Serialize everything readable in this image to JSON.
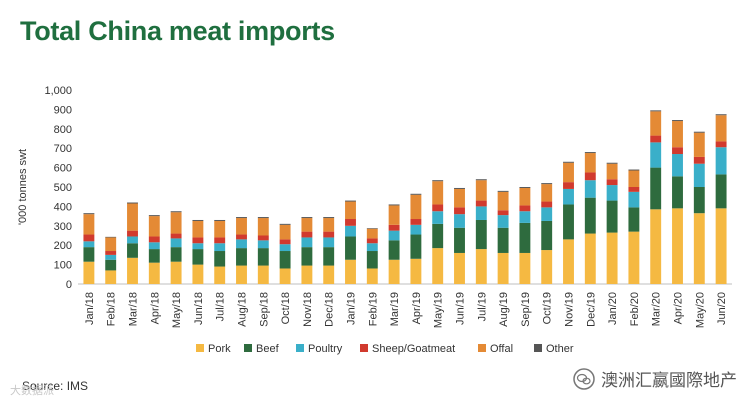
{
  "title": "Total China meat imports",
  "source": "Source: IMS",
  "watermark_left": "大数据派",
  "watermark_right": "澳洲汇嬴國際地产",
  "chart_data": {
    "type": "bar",
    "stacked": true,
    "title": "Total China meat imports",
    "xlabel": "",
    "ylabel": "'000 tonnes swt",
    "ylim": [
      0,
      1000
    ],
    "yticks": [
      0,
      100,
      200,
      300,
      400,
      500,
      600,
      700,
      800,
      900,
      1000
    ],
    "ytick_labels": [
      "0",
      "100",
      "200",
      "300",
      "400",
      "500",
      "600",
      "700",
      "800",
      "900",
      "1,000"
    ],
    "grid": false,
    "legend_position": "bottom",
    "categories": [
      "Jan/18",
      "Feb/18",
      "Mar/18",
      "Apr/18",
      "May/18",
      "Jun/18",
      "Jul/18",
      "Aug/18",
      "Sep/18",
      "Oct/18",
      "Nov/18",
      "Dec/18",
      "Jan/19",
      "Feb/19",
      "Mar/19",
      "Apr/19",
      "May/19",
      "Jun/19",
      "Jul/19",
      "Aug/19",
      "Sep/19",
      "Oct/19",
      "Nov/19",
      "Dec/19",
      "Jan/20",
      "Feb/20",
      "Mar/20",
      "Apr/20",
      "May/20",
      "Jun/20"
    ],
    "xtick_labels": [
      "Jan/18",
      "Feb/18",
      "Mar/18",
      "Apr/18",
      "May/18",
      "Jun/18",
      "Jul/18",
      "Aug/18",
      "Sep/18",
      "Oct/18",
      "Nov/18",
      "Dec/18",
      "Jan/19",
      "Feb/19",
      "Mar/19",
      "Apr/19",
      "May/19",
      "Jun/19",
      "Jul/19",
      "Aug/19",
      "Sep/19",
      "Oct/19",
      "Nov/19",
      "Dec/19",
      "Jan/20",
      "Feb/20",
      "Mar/20",
      "Apr/20",
      "May/20",
      "Jun/20"
    ],
    "series": [
      {
        "name": "Pork",
        "color": "#f5b942",
        "values": [
          115,
          70,
          135,
          110,
          115,
          100,
          90,
          95,
          95,
          80,
          95,
          95,
          125,
          80,
          125,
          130,
          185,
          160,
          180,
          160,
          160,
          175,
          230,
          260,
          265,
          270,
          385,
          390,
          365,
          390
        ]
      },
      {
        "name": "Beef",
        "color": "#2e6b3e",
        "values": [
          75,
          55,
          75,
          70,
          75,
          80,
          80,
          90,
          90,
          90,
          95,
          95,
          120,
          90,
          100,
          125,
          125,
          130,
          150,
          130,
          155,
          150,
          180,
          185,
          165,
          125,
          215,
          165,
          135,
          175
        ]
      },
      {
        "name": "Poultry",
        "color": "#3aafc9",
        "values": [
          30,
          25,
          35,
          35,
          45,
          30,
          40,
          45,
          40,
          35,
          50,
          50,
          55,
          40,
          50,
          50,
          65,
          70,
          70,
          65,
          60,
          70,
          80,
          90,
          80,
          80,
          130,
          115,
          120,
          140
        ]
      },
      {
        "name": "Sheep/Goatmeat",
        "color": "#d13a2e",
        "values": [
          35,
          20,
          30,
          30,
          25,
          30,
          30,
          25,
          25,
          25,
          30,
          30,
          35,
          25,
          30,
          30,
          35,
          35,
          30,
          25,
          30,
          30,
          35,
          40,
          30,
          25,
          35,
          35,
          35,
          30
        ]
      },
      {
        "name": "Offal",
        "color": "#e48a35",
        "values": [
          105,
          70,
          140,
          105,
          110,
          85,
          85,
          85,
          90,
          75,
          70,
          70,
          90,
          50,
          100,
          125,
          120,
          95,
          105,
          95,
          90,
          90,
          100,
          100,
          80,
          85,
          125,
          135,
          125,
          135
        ]
      },
      {
        "name": "Other",
        "color": "#555555",
        "values": [
          5,
          3,
          5,
          5,
          5,
          5,
          5,
          5,
          5,
          5,
          5,
          5,
          5,
          3,
          5,
          5,
          5,
          5,
          5,
          5,
          5,
          5,
          5,
          5,
          5,
          5,
          5,
          5,
          5,
          5
        ]
      }
    ]
  }
}
